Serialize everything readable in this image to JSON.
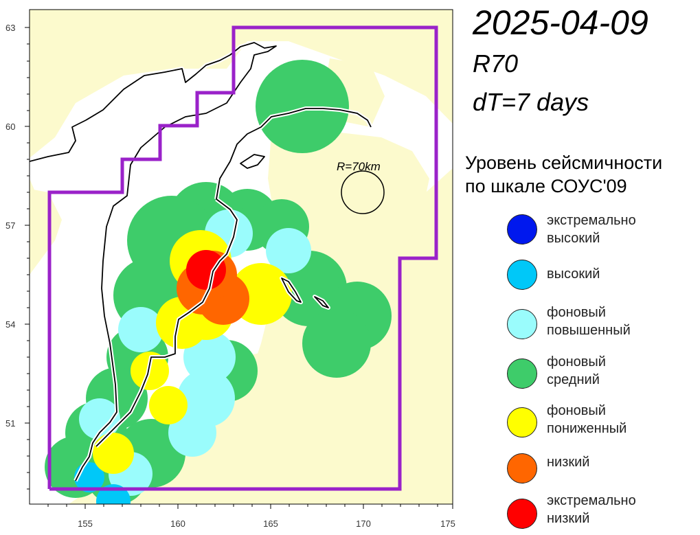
{
  "header": {
    "date": "2025-04-09",
    "radius_label": "R70",
    "interval_label": "dT=7 days"
  },
  "map": {
    "lon_ticks": [
      "155",
      "160",
      "165",
      "170",
      "175"
    ],
    "lat_ticks": [
      "51",
      "54",
      "57",
      "60",
      "63"
    ],
    "radius_annotation": "R=70km",
    "region_outline_color": "#9a22c9",
    "background_color": "#fcfacd"
  },
  "legend": {
    "title_line1": "Уровень сейсмичности",
    "title_line2": "по шкале СОУС'09",
    "items": [
      {
        "line1": "экстремально",
        "line2": "высокий",
        "color": "#0018ee"
      },
      {
        "line1": "высокий",
        "line2": "",
        "color": "#00c8f8"
      },
      {
        "line1": "фоновый",
        "line2": "повышенный",
        "color": "#9afcfc"
      },
      {
        "line1": "фоновый",
        "line2": "средний",
        "color": "#3ecc6a"
      },
      {
        "line1": "фоновый",
        "line2": "пониженный",
        "color": "#ffff00"
      },
      {
        "line1": "низкий",
        "line2": "",
        "color": "#ff6600"
      },
      {
        "line1": "экстремально",
        "line2": "низкий",
        "color": "#ff0000"
      }
    ]
  }
}
